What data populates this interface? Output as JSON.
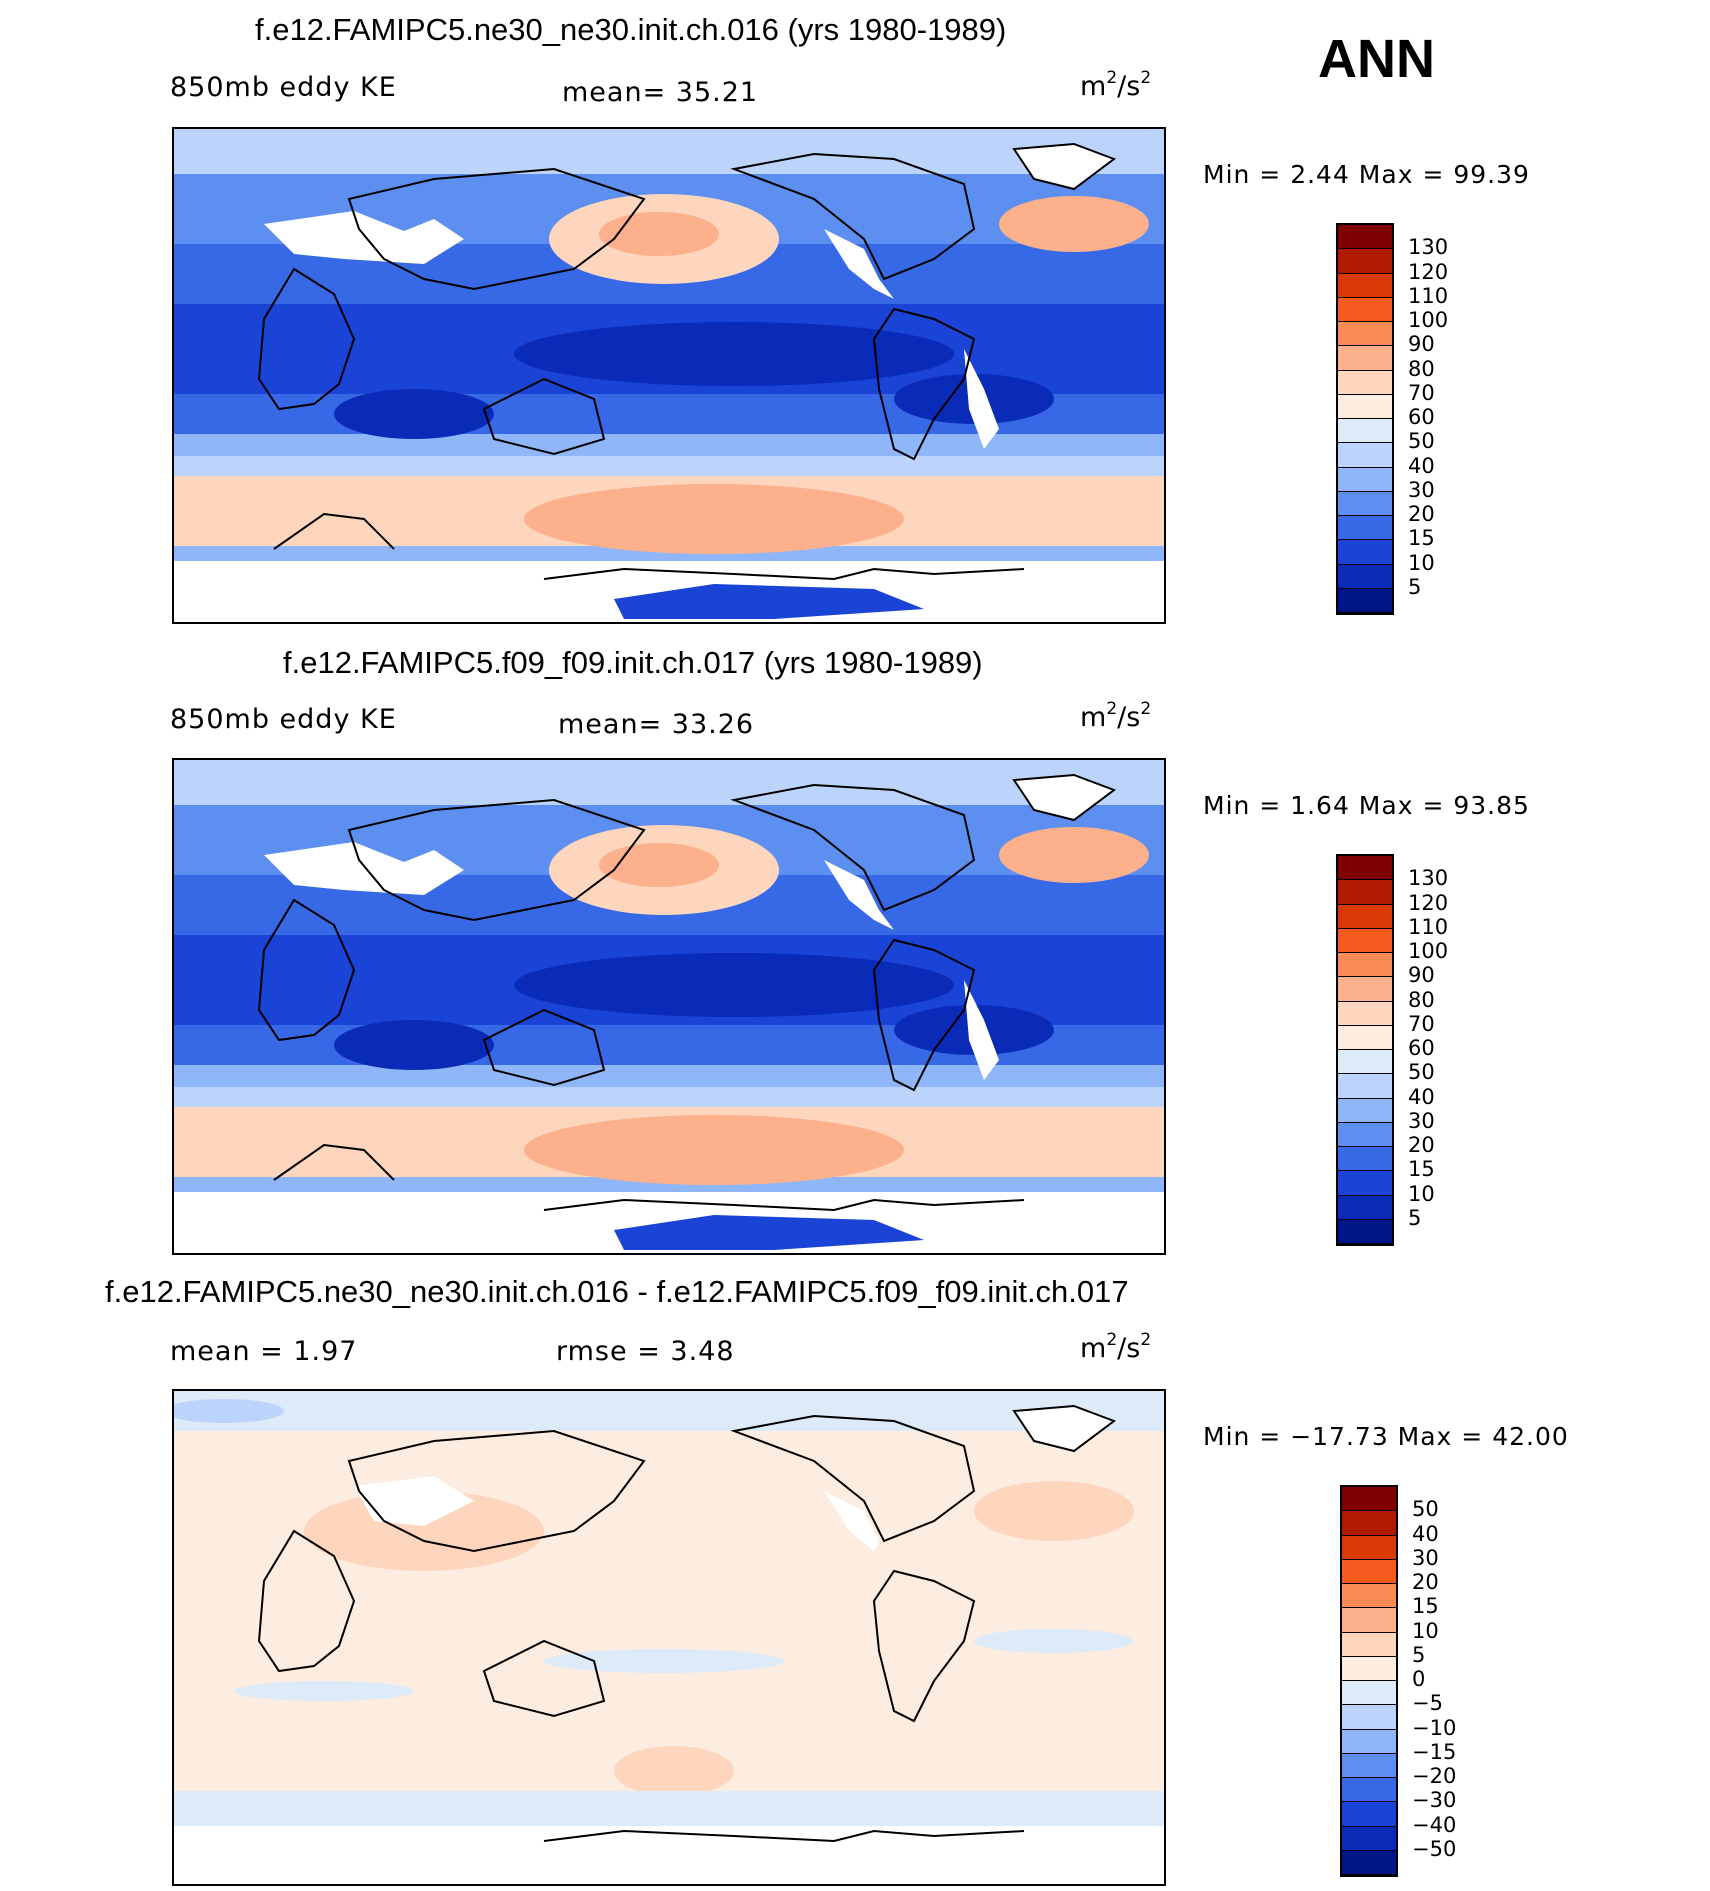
{
  "season": "ANN",
  "panels": [
    {
      "title": "f.e12.FAMIPC5.ne30_ne30.init.ch.016 (yrs 1980-1989)",
      "left_label": "850mb  eddy  KE",
      "middle_label": "mean=   35.21",
      "units_base": "m",
      "units_sup1": "2",
      "units_mid": "/s",
      "units_sup2": "2",
      "min_text": "Min  =     2.44  Max  =    99.39",
      "colorbar_key": "abs"
    },
    {
      "title": "f.e12.FAMIPC5.f09_f09.init.ch.017 (yrs 1980-1989)",
      "left_label": "850mb  eddy  KE",
      "middle_label": "mean=   33.26",
      "units_base": "m",
      "units_sup1": "2",
      "units_mid": "/s",
      "units_sup2": "2",
      "min_text": "Min  =     1.64  Max  =    93.85",
      "colorbar_key": "abs"
    },
    {
      "title": "f.e12.FAMIPC5.ne30_ne30.init.ch.016 - f.e12.FAMIPC5.f09_f09.init.ch.017",
      "left_label": "mean  =      1.97",
      "middle_label": "rmse  =      3.48",
      "units_base": "m",
      "units_sup1": "2",
      "units_mid": "/s",
      "units_sup2": "2",
      "min_text": "Min  =  −17.73  Max  =    42.00",
      "colorbar_key": "diff"
    }
  ],
  "colorbars": {
    "abs": {
      "labels": [
        "130",
        "120",
        "110",
        "100",
        "90",
        "80",
        "70",
        "60",
        "50",
        "40",
        "30",
        "20",
        "15",
        "10",
        "5"
      ],
      "colors": [
        "#7f0000",
        "#b01a00",
        "#d93a05",
        "#f55a1f",
        "#fb8a55",
        "#fcb08c",
        "#fdd6bd",
        "#fdece0",
        "#ddeaf8",
        "#bcd4fb",
        "#8eb6f8",
        "#5c8ff0",
        "#3769e6",
        "#1944d6",
        "#0a2ab8",
        "#001687"
      ]
    },
    "diff": {
      "labels": [
        "50",
        "40",
        "30",
        "20",
        "15",
        "10",
        "5",
        "0",
        "−5",
        "−10",
        "−15",
        "−20",
        "−30",
        "−40",
        "−50"
      ],
      "colors": [
        "#7f0000",
        "#b01a00",
        "#d93a05",
        "#f55a1f",
        "#fb8a55",
        "#fcb08c",
        "#fdd6bd",
        "#fdece0",
        "#ddeaf8",
        "#bcd4fb",
        "#8eb6f8",
        "#5c8ff0",
        "#3769e6",
        "#1944d6",
        "#0a2ab8",
        "#001687"
      ]
    }
  }
}
